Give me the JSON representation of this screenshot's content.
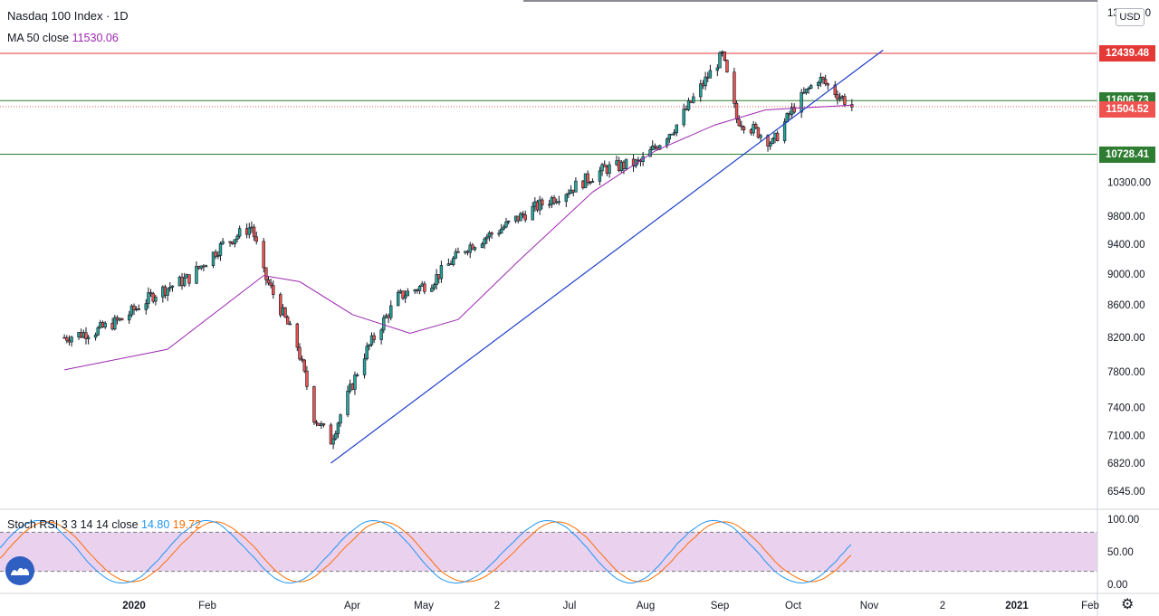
{
  "header": {
    "symbol_title": "Nasdaq 100 Index · 1D",
    "ma_label": "MA 50 close",
    "ma_value": "11530.06",
    "ma_color": "#9c27b0"
  },
  "currency_button": "USD",
  "price_tags": [
    {
      "value": "12439.48",
      "color": "#e53935"
    },
    {
      "value": "11606.73",
      "color": "#2e7d32"
    },
    {
      "value": "11504.52",
      "color": "#ef5350"
    },
    {
      "value": "10728.41",
      "color": "#2e7d32"
    }
  ],
  "oscillator": {
    "label": "Stoch RSI 3 3 14 14 close",
    "k_value": "14.80",
    "d_value": "19.72",
    "k_color": "#2196f3",
    "d_color": "#ff6d00",
    "band_color": "#e1bee7",
    "y_ticks": [
      "100.00",
      "50.00",
      "0.00"
    ]
  },
  "icons": {
    "settings": "gear-icon",
    "logo": "tradingview-logo-icon"
  },
  "chart_data": {
    "type": "candlestick",
    "title": "Nasdaq 100 Index · 1D",
    "y_ticks": [
      "13100.00",
      "10300.00",
      "9800.00",
      "9400.00",
      "9000.00",
      "8600.00",
      "8200.00",
      "7800.00",
      "7400.00",
      "7100.00",
      "6820.00",
      "6545.00"
    ],
    "x_ticks": [
      "2020",
      "Feb",
      "Apr",
      "May",
      "2",
      "Jul",
      "Aug",
      "Sep",
      "Oct",
      "Nov",
      "2",
      "2021",
      "Feb"
    ],
    "horizontal_levels": [
      12439.48,
      11606.73,
      10728.41
    ],
    "last_price": 11504.52,
    "price_series": {
      "x_dates": [
        "2019-12-03",
        "2019-12-16",
        "2019-12-27",
        "2020-01-10",
        "2020-01-24",
        "2020-02-07",
        "2020-02-19",
        "2020-02-24",
        "2020-03-09",
        "2020-03-16",
        "2020-03-23",
        "2020-04-06",
        "2020-04-20",
        "2020-05-04",
        "2020-05-18",
        "2020-06-01",
        "2020-06-15",
        "2020-07-01",
        "2020-07-15",
        "2020-07-30",
        "2020-08-14",
        "2020-09-02",
        "2020-09-08",
        "2020-09-18",
        "2020-09-23",
        "2020-10-02",
        "2020-10-12",
        "2020-10-22",
        "2020-10-26"
      ],
      "close": [
        8200,
        8280,
        8420,
        8750,
        8950,
        9400,
        9650,
        9000,
        8100,
        7300,
        7050,
        8000,
        8700,
        8900,
        9350,
        9600,
        9900,
        10200,
        10500,
        10600,
        11200,
        12400,
        11300,
        11050,
        10900,
        11500,
        12000,
        11650,
        11504.52
      ]
    },
    "ma50_series": {
      "x_dates": [
        "2019-12-03",
        "2020-01-15",
        "2020-02-24",
        "2020-03-10",
        "2020-04-01",
        "2020-04-25",
        "2020-05-15",
        "2020-06-10",
        "2020-07-10",
        "2020-08-05",
        "2020-08-30",
        "2020-09-20",
        "2020-10-26"
      ],
      "values": [
        7820,
        8060,
        8980,
        8900,
        8480,
        8250,
        8420,
        9200,
        10150,
        10780,
        11200,
        11450,
        11530.06
      ]
    },
    "trendline": {
      "from": [
        "2020-03-23",
        6820
      ],
      "to": [
        "2020-11-08",
        12500
      ]
    }
  }
}
